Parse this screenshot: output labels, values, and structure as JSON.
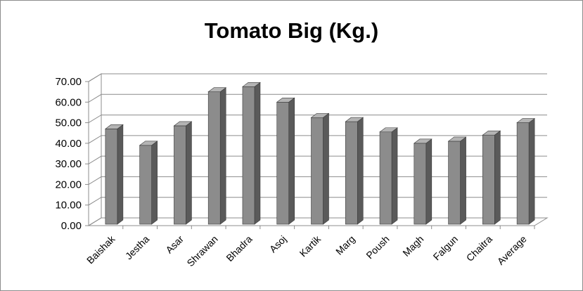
{
  "chart_data": {
    "type": "bar",
    "title": "Tomato Big (Kg.)",
    "xlabel": "",
    "ylabel": "",
    "categories": [
      "Baishak",
      "Jestha",
      "Asar",
      "Shrawan",
      "Bhadra",
      "Asoj",
      "Kartik",
      "Marg",
      "Poush",
      "Magh",
      "Falgun",
      "Chaitra",
      "Average"
    ],
    "values": [
      47,
      39,
      48.5,
      65,
      67.5,
      60,
      52.5,
      50.5,
      45.5,
      40,
      41,
      44,
      50
    ],
    "ylim": [
      0,
      70
    ],
    "yticks": [
      "0.00",
      "10.00",
      "20.00",
      "30.00",
      "40.00",
      "50.00",
      "60.00",
      "70.00"
    ],
    "grid": true,
    "legend": "none",
    "style": "3d-column",
    "colors": {
      "bar_front": "#8c8c8c",
      "bar_side": "#5a5a5a",
      "bar_top": "#b4b4b4"
    }
  }
}
